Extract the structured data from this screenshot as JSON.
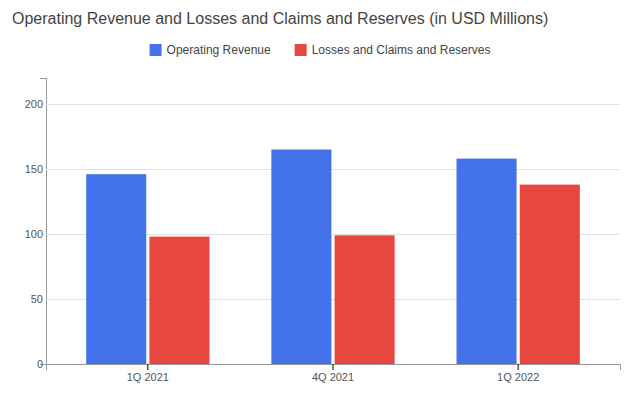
{
  "chart_data": {
    "type": "bar",
    "title": "Operating Revenue and Losses and Claims and Reserves (in USD Millions)",
    "categories": [
      "1Q 2021",
      "4Q 2021",
      "1Q 2022"
    ],
    "series": [
      {
        "name": "Operating Revenue",
        "color": "#4472EA",
        "values": [
          146,
          165,
          158
        ]
      },
      {
        "name": "Losses and Claims and Reserves",
        "color": "#E8473F",
        "values": [
          98,
          99,
          138
        ]
      }
    ],
    "ylim": [
      0,
      220
    ],
    "yticks": [
      0,
      50,
      100,
      150,
      200
    ],
    "grid": true
  }
}
